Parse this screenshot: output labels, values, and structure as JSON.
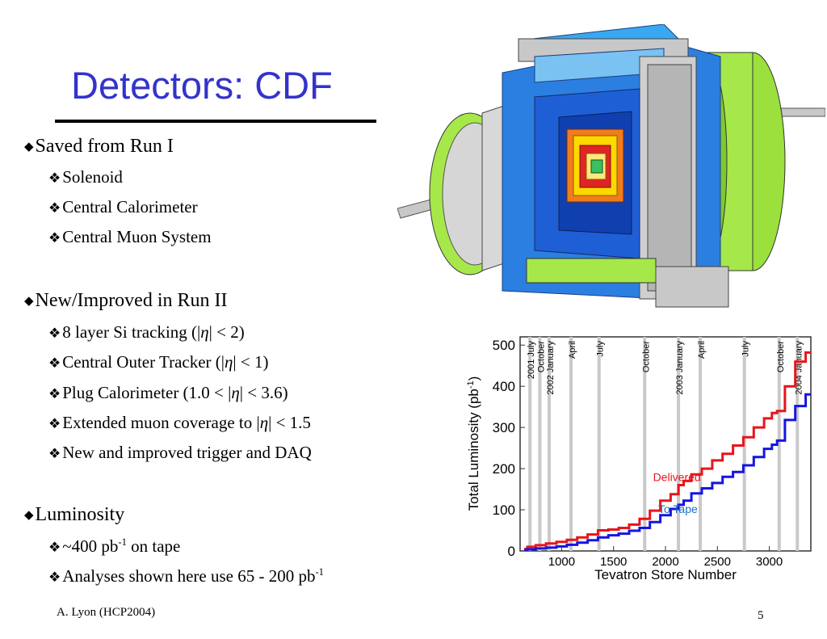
{
  "title": "Detectors: CDF",
  "sections": [
    {
      "heading": "Saved from Run I",
      "items": [
        "Solenoid",
        "Central Calorimeter",
        "Central Muon System"
      ]
    },
    {
      "heading": "New/Improved in Run II",
      "items_structured": [
        {
          "pre": "8 layer Si tracking (|",
          "eta": "η",
          "post": "| < 2)"
        },
        {
          "pre": "Central Outer Tracker (|",
          "eta": "η",
          "post": "| < 1)"
        },
        {
          "pre": "Plug Calorimeter (1.0 < |",
          "eta": "η",
          "post": "| < 3.6)"
        },
        {
          "pre": "Extended muon coverage to |",
          "eta": "η",
          "post": "| < 1.5"
        },
        {
          "pre": "New and improved trigger and DAQ",
          "eta": "",
          "post": ""
        }
      ]
    },
    {
      "heading": "Luminosity",
      "items_sup": [
        {
          "pre": "~400 pb",
          "sup": "-1",
          "post": " on tape"
        },
        {
          "pre": "Analyses shown here use 65 - 200 pb",
          "sup": "-1",
          "post": ""
        }
      ]
    }
  ],
  "footer": {
    "author": "A. Lyon (HCP2004)",
    "page": "5"
  },
  "chart_data": {
    "type": "line",
    "xlabel": "Tevatron Store Number",
    "ylabel_main": "Total Luminosity (pb",
    "ylabel_sup": "-1",
    "ylabel_close": ")",
    "xlim": [
      600,
      3400
    ],
    "ylim": [
      0,
      520
    ],
    "xticks": [
      1000,
      1500,
      2000,
      2500,
      3000
    ],
    "yticks": [
      0,
      100,
      200,
      300,
      400,
      500
    ],
    "annotations": [
      {
        "label": "2001 July",
        "x": 695
      },
      {
        "label": "October",
        "x": 790
      },
      {
        "label": "2002 January",
        "x": 880
      },
      {
        "label": "April",
        "x": 1090
      },
      {
        "label": "July",
        "x": 1360
      },
      {
        "label": "October",
        "x": 1800
      },
      {
        "label": "2003 January",
        "x": 2125
      },
      {
        "label": "April",
        "x": 2335
      },
      {
        "label": "July",
        "x": 2760
      },
      {
        "label": "October",
        "x": 3095
      },
      {
        "label": "2004 January",
        "x": 3270
      }
    ],
    "series": [
      {
        "name": "Delivered",
        "color": "#e8141b",
        "x": [
          640,
          700,
          800,
          900,
          1000,
          1100,
          1200,
          1300,
          1400,
          1500,
          1600,
          1700,
          1800,
          1900,
          2000,
          2100,
          2150,
          2200,
          2300,
          2400,
          2500,
          2600,
          2700,
          2800,
          2900,
          3000,
          3050,
          3100,
          3200,
          3300,
          3400
        ],
        "y": [
          5,
          10,
          14,
          18,
          22,
          27,
          33,
          40,
          50,
          52,
          56,
          64,
          78,
          98,
          122,
          138,
          160,
          170,
          186,
          200,
          220,
          236,
          256,
          276,
          300,
          322,
          335,
          340,
          400,
          460,
          482
        ]
      },
      {
        "name": "To Tape",
        "color": "#1515e0",
        "x": [
          640,
          700,
          800,
          900,
          1000,
          1100,
          1200,
          1300,
          1400,
          1500,
          1600,
          1700,
          1800,
          1900,
          2000,
          2100,
          2150,
          2200,
          2300,
          2400,
          2500,
          2600,
          2700,
          2800,
          2900,
          3000,
          3050,
          3100,
          3200,
          3300,
          3400
        ],
        "y": [
          2,
          4,
          6,
          8,
          11,
          15,
          20,
          26,
          33,
          38,
          42,
          49,
          56,
          70,
          87,
          102,
          112,
          122,
          140,
          152,
          165,
          180,
          192,
          208,
          228,
          248,
          258,
          268,
          318,
          352,
          380
        ]
      }
    ],
    "series_labels": [
      {
        "text": "Delivered",
        "color": "#e8141b",
        "x": 1880,
        "y": 170
      },
      {
        "text": "To Tape",
        "color": "#1b6fc4",
        "x": 1930,
        "y": 92
      }
    ]
  }
}
